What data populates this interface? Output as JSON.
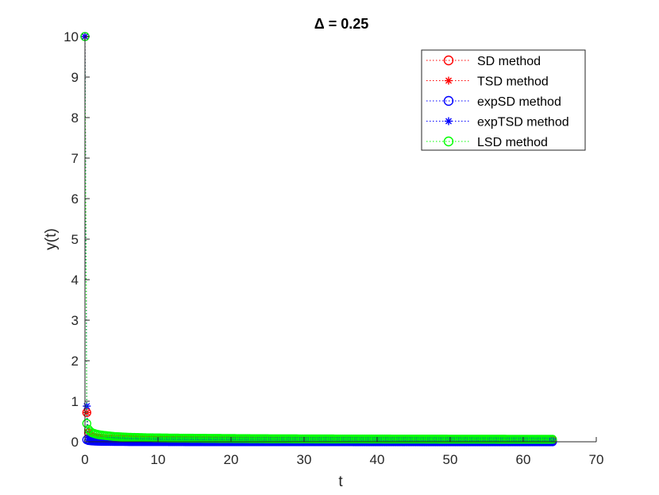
{
  "chart_data": {
    "type": "line",
    "title": "Δ = 0.25",
    "xlabel": "t",
    "ylabel": "y(t)",
    "xlim": [
      0,
      70
    ],
    "ylim": [
      0,
      10
    ],
    "xticks": [
      "0",
      "10",
      "20",
      "30",
      "40",
      "50",
      "60",
      "70"
    ],
    "yticks": [
      "0",
      "1",
      "2",
      "3",
      "4",
      "5",
      "6",
      "7",
      "8",
      "9",
      "10"
    ],
    "grid": false,
    "legend_position": "top-right",
    "step": 0.25,
    "t_end": 64,
    "series": [
      {
        "name": "SD method",
        "color": "#ff0000",
        "marker": "circle",
        "linestyle": "dotted",
        "t": [
          0,
          0.25,
          0.5,
          0.75,
          1,
          1.5,
          2,
          3,
          4,
          6,
          8,
          12,
          16,
          24,
          32,
          48,
          64
        ],
        "y": [
          10,
          0.72,
          0.22,
          0.15,
          0.12,
          0.1,
          0.09,
          0.07,
          0.06,
          0.05,
          0.045,
          0.04,
          0.037,
          0.033,
          0.031,
          0.03,
          0.03
        ]
      },
      {
        "name": "TSD method",
        "color": "#ff0000",
        "marker": "star",
        "linestyle": "dotted",
        "t": [
          0,
          0.25,
          0.5,
          0.75,
          1,
          1.5,
          2,
          3,
          4,
          6,
          8,
          12,
          16,
          24,
          32,
          48,
          64
        ],
        "y": [
          10,
          0.72,
          0.22,
          0.15,
          0.12,
          0.1,
          0.09,
          0.07,
          0.06,
          0.05,
          0.045,
          0.04,
          0.037,
          0.033,
          0.031,
          0.03,
          0.03
        ]
      },
      {
        "name": "expSD method",
        "color": "#0000ff",
        "marker": "circle",
        "linestyle": "dotted",
        "t": [
          0,
          0.25,
          0.5,
          0.75,
          1,
          1.5,
          2,
          3,
          4,
          6,
          8,
          12,
          16,
          24,
          32,
          48,
          64
        ],
        "y": [
          10,
          0.05,
          0.03,
          0.025,
          0.02,
          0.015,
          0.012,
          0.01,
          0.008,
          0.006,
          0.005,
          0.004,
          0.003,
          0.002,
          0.002,
          0.001,
          0.001
        ]
      },
      {
        "name": "expTSD method",
        "color": "#0000ff",
        "marker": "star",
        "linestyle": "dotted",
        "t": [
          0,
          0.25,
          0.5,
          0.75,
          1,
          1.5,
          2,
          3,
          4,
          6,
          8,
          12,
          16,
          24,
          32,
          48,
          64
        ],
        "y": [
          10,
          0.88,
          0.05,
          0.03,
          0.025,
          0.02,
          0.015,
          0.012,
          0.01,
          0.008,
          0.006,
          0.005,
          0.004,
          0.003,
          0.002,
          0.001,
          0.001
        ]
      },
      {
        "name": "LSD method",
        "color": "#00ff00",
        "marker": "circle",
        "linestyle": "dotted",
        "t": [
          0,
          0.25,
          0.5,
          0.75,
          1,
          1.5,
          2,
          3,
          4,
          6,
          8,
          12,
          16,
          24,
          32,
          48,
          64
        ],
        "y": [
          10,
          0.45,
          0.3,
          0.25,
          0.22,
          0.19,
          0.17,
          0.15,
          0.13,
          0.11,
          0.1,
          0.09,
          0.085,
          0.075,
          0.07,
          0.065,
          0.06
        ]
      }
    ]
  }
}
